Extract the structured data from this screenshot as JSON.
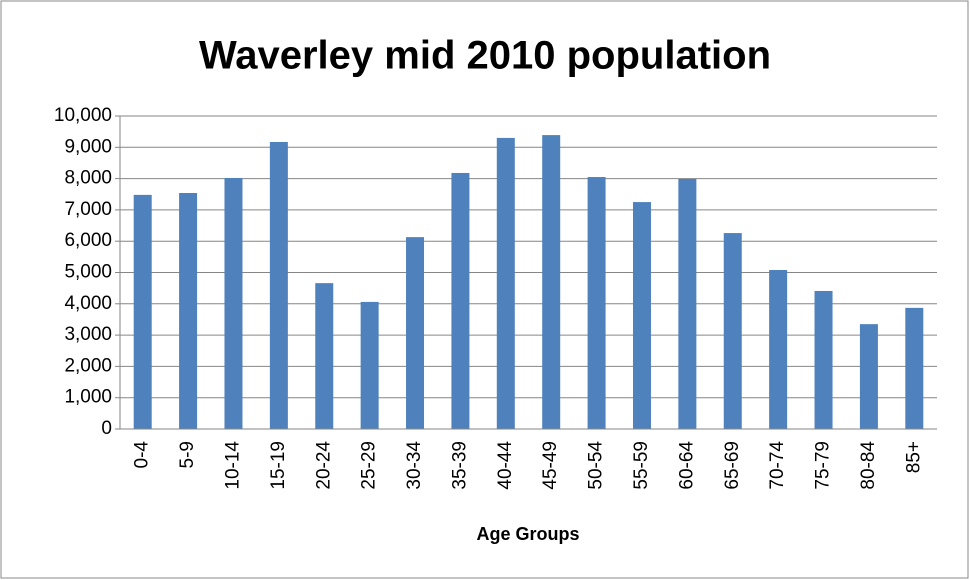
{
  "chart_data": {
    "type": "bar",
    "title": "Waverley mid 2010 population",
    "x_label": "Age Groups",
    "categories": [
      "0-4",
      "5-9",
      "10-14",
      "15-19",
      "20-24",
      "25-29",
      "30-34",
      "35-39",
      "40-44",
      "45-49",
      "50-54",
      "55-59",
      "60-64",
      "65-69",
      "70-74",
      "75-79",
      "80-84",
      "85+"
    ],
    "values": [
      7480,
      7540,
      8020,
      9170,
      4660,
      4060,
      6130,
      8180,
      9300,
      9390,
      8050,
      7250,
      7990,
      6260,
      5080,
      4410,
      3350,
      3870
    ],
    "color": "#4f81bd",
    "ylim": [
      0,
      10000
    ],
    "yticks": [
      0,
      {
        "value": 1000,
        "label": "1,000"
      },
      {
        "value": 2000,
        "label": "2,000"
      },
      {
        "value": 3000,
        "label": "3,000"
      },
      {
        "value": 4000,
        "label": "4,000"
      },
      {
        "value": 5000,
        "label": "5,000"
      },
      {
        "value": 6000,
        "label": "6,000"
      },
      {
        "value": 7000,
        "label": "7,000"
      },
      {
        "value": 8000,
        "label": "8,000"
      },
      {
        "value": 9000,
        "label": "9,000"
      },
      {
        "value": 10000,
        "label": "10,000"
      }
    ],
    "grid": true
  }
}
